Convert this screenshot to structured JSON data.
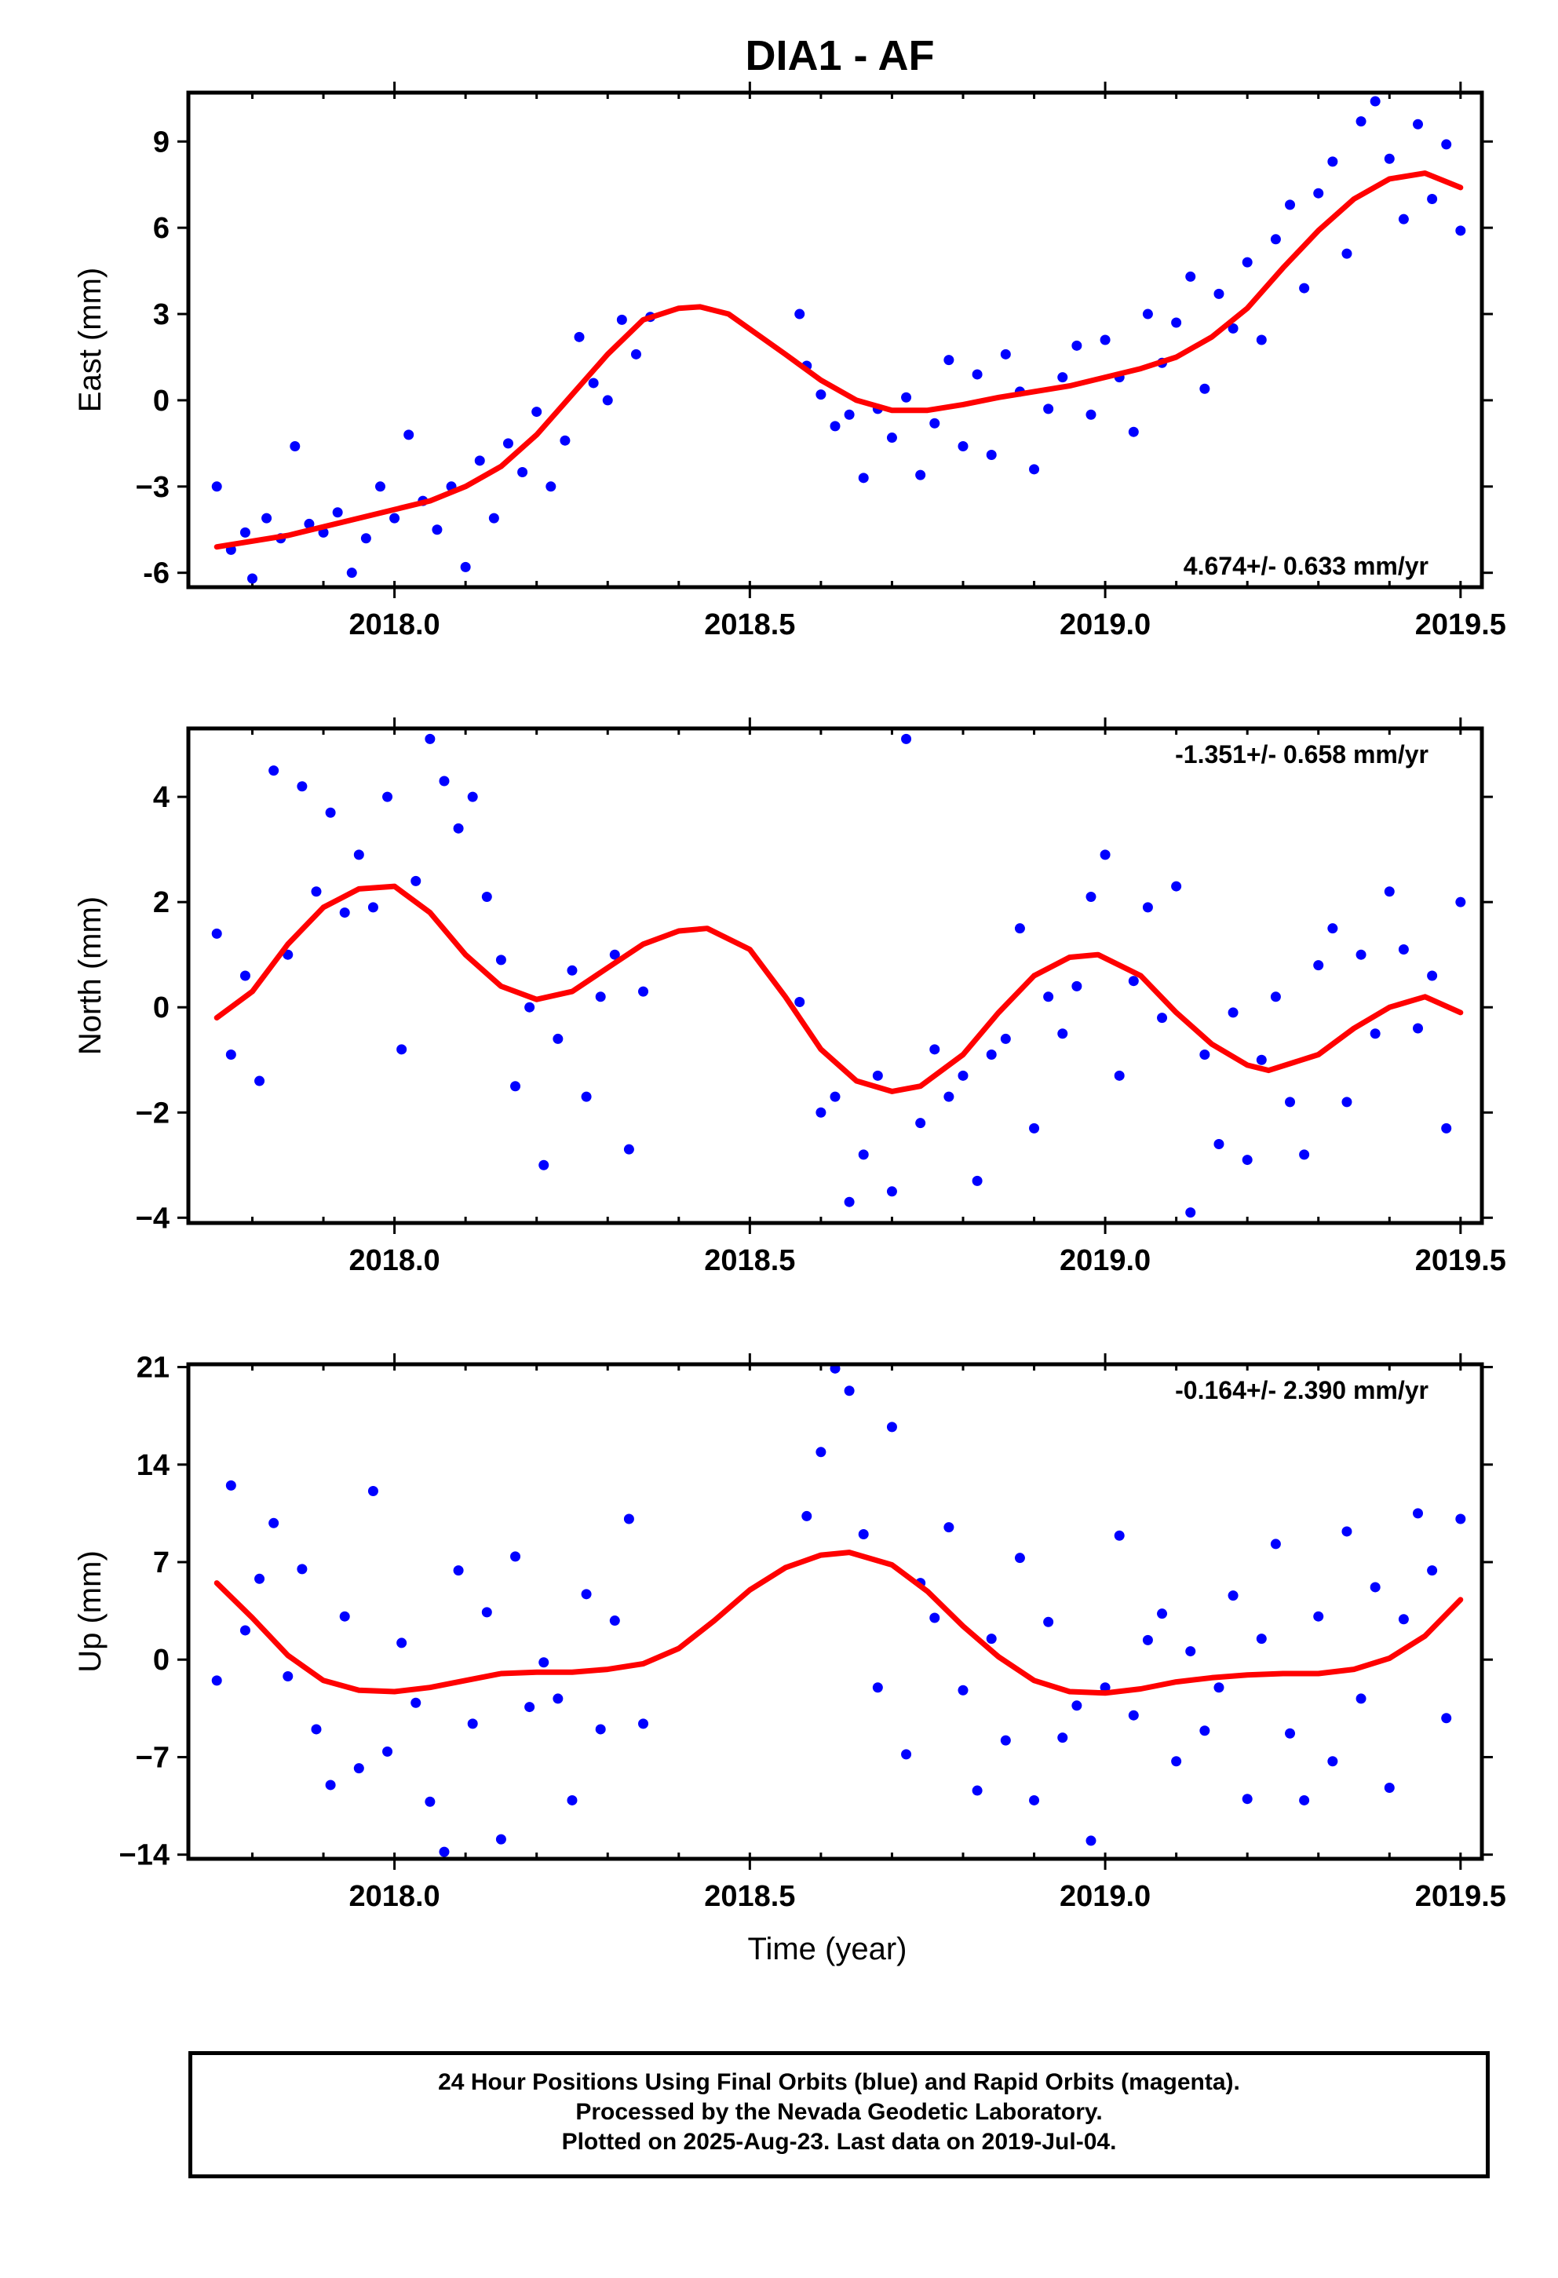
{
  "figure": {
    "title": "DIA1 - AF",
    "x_axis_label": "Time (year)",
    "footer": [
      "24 Hour Positions Using Final Orbits (blue) and Rapid Orbits (magenta).",
      "Processed by the Nevada Geodetic Laboratory.",
      "Plotted on 2025-Aug-23. Last data on 2019-Jul-04."
    ],
    "colors": {
      "points": "#0000ff",
      "model": "#ff0000",
      "frame": "#000000",
      "background": "#ffffff"
    }
  },
  "chart_data": [
    {
      "type": "scatter",
      "ylabel": "East (mm)",
      "xlabel": "",
      "rate_label": "4.674+/- 0.633 mm/yr",
      "rate_position": "bottom-right",
      "xlim": [
        2017.71,
        2019.53
      ],
      "ylim": [
        -6.5,
        10.7
      ],
      "x_ticks": [
        "2018.0",
        "2018.5",
        "2019.0",
        "2019.5"
      ],
      "y_ticks": [
        "9",
        "6",
        "3",
        "0",
        "−3",
        "-6"
      ],
      "series": [
        {
          "role": "points",
          "color": "#0000ff",
          "x": [
            2017.75,
            2017.77,
            2017.79,
            2017.8,
            2017.82,
            2017.84,
            2017.86,
            2017.88,
            2017.9,
            2017.92,
            2017.94,
            2017.96,
            2017.98,
            2018.0,
            2018.02,
            2018.04,
            2018.06,
            2018.08,
            2018.1,
            2018.12,
            2018.14,
            2018.16,
            2018.18,
            2018.2,
            2018.22,
            2018.24,
            2018.26,
            2018.28,
            2018.3,
            2018.32,
            2018.34,
            2018.36,
            2018.57,
            2018.58,
            2018.6,
            2018.62,
            2018.64,
            2018.66,
            2018.68,
            2018.7,
            2018.72,
            2018.74,
            2018.76,
            2018.78,
            2018.8,
            2018.82,
            2018.84,
            2018.86,
            2018.88,
            2018.9,
            2018.92,
            2018.94,
            2018.96,
            2018.98,
            2019.0,
            2019.02,
            2019.04,
            2019.06,
            2019.08,
            2019.1,
            2019.12,
            2019.14,
            2019.16,
            2019.18,
            2019.2,
            2019.22,
            2019.24,
            2019.26,
            2019.28,
            2019.3,
            2019.32,
            2019.34,
            2019.36,
            2019.38,
            2019.4,
            2019.42,
            2019.44,
            2019.46,
            2019.48,
            2019.5
          ],
          "y": [
            -3.0,
            -5.2,
            -4.6,
            -6.2,
            -4.1,
            -4.8,
            -1.6,
            -4.3,
            -4.6,
            -3.9,
            -6.0,
            -4.8,
            -3.0,
            -4.1,
            -1.2,
            -3.5,
            -4.5,
            -3.0,
            -5.8,
            -2.1,
            -4.1,
            -1.5,
            -2.5,
            -0.4,
            -3.0,
            -1.4,
            2.2,
            0.6,
            0.0,
            2.8,
            1.6,
            2.9,
            3.0,
            1.2,
            0.2,
            -0.9,
            -0.5,
            -2.7,
            -0.3,
            -1.3,
            0.1,
            -2.6,
            -0.8,
            1.4,
            -1.6,
            0.9,
            -1.9,
            1.6,
            0.3,
            -2.4,
            -0.3,
            0.8,
            1.9,
            -0.5,
            2.1,
            0.8,
            -1.1,
            3.0,
            1.3,
            2.7,
            4.3,
            0.4,
            3.7,
            2.5,
            4.8,
            2.1,
            5.6,
            6.8,
            3.9,
            7.2,
            8.3,
            5.1,
            9.7,
            10.4,
            8.4,
            6.3,
            9.6,
            7.0,
            8.9,
            5.9
          ]
        },
        {
          "role": "model",
          "color": "#ff0000",
          "x": [
            2017.75,
            2017.85,
            2017.95,
            2018.05,
            2018.1,
            2018.15,
            2018.2,
            2018.25,
            2018.3,
            2018.35,
            2018.4,
            2018.43,
            2018.47,
            2018.55,
            2018.6,
            2018.65,
            2018.7,
            2018.75,
            2018.8,
            2018.85,
            2018.9,
            2018.95,
            2019.0,
            2019.05,
            2019.1,
            2019.15,
            2019.2,
            2019.25,
            2019.3,
            2019.35,
            2019.4,
            2019.45,
            2019.5
          ],
          "y": [
            -5.1,
            -4.7,
            -4.1,
            -3.5,
            -3.0,
            -2.3,
            -1.2,
            0.2,
            1.6,
            2.8,
            3.2,
            3.25,
            3.0,
            1.6,
            0.7,
            0.0,
            -0.35,
            -0.35,
            -0.15,
            0.1,
            0.3,
            0.5,
            0.8,
            1.1,
            1.5,
            2.2,
            3.2,
            4.6,
            5.9,
            7.0,
            7.7,
            7.9,
            7.4
          ]
        }
      ]
    },
    {
      "type": "scatter",
      "ylabel": "North (mm)",
      "xlabel": "",
      "rate_label": "-1.351+/- 0.658 mm/yr",
      "rate_position": "top-right",
      "xlim": [
        2017.71,
        2019.53
      ],
      "ylim": [
        -4.1,
        5.3
      ],
      "x_ticks": [
        "2018.0",
        "2018.5",
        "2019.0",
        "2019.5"
      ],
      "y_ticks": [
        "4",
        "2",
        "0",
        "−2",
        "−4"
      ],
      "series": [
        {
          "role": "points",
          "color": "#0000ff",
          "x": [
            2017.75,
            2017.77,
            2017.79,
            2017.81,
            2017.83,
            2017.85,
            2017.87,
            2017.89,
            2017.91,
            2017.93,
            2017.95,
            2017.97,
            2017.99,
            2018.01,
            2018.03,
            2018.05,
            2018.07,
            2018.09,
            2018.11,
            2018.13,
            2018.15,
            2018.17,
            2018.19,
            2018.21,
            2018.23,
            2018.25,
            2018.27,
            2018.29,
            2018.31,
            2018.33,
            2018.35,
            2018.57,
            2018.6,
            2018.62,
            2018.64,
            2018.66,
            2018.68,
            2018.7,
            2018.72,
            2018.74,
            2018.76,
            2018.78,
            2018.8,
            2018.82,
            2018.84,
            2018.86,
            2018.88,
            2018.9,
            2018.92,
            2018.94,
            2018.96,
            2018.98,
            2019.0,
            2019.02,
            2019.04,
            2019.06,
            2019.08,
            2019.1,
            2019.12,
            2019.14,
            2019.16,
            2019.18,
            2019.2,
            2019.22,
            2019.24,
            2019.26,
            2019.28,
            2019.3,
            2019.32,
            2019.34,
            2019.36,
            2019.38,
            2019.4,
            2019.42,
            2019.44,
            2019.46,
            2019.48,
            2019.5
          ],
          "y": [
            1.4,
            -0.9,
            0.6,
            -1.4,
            4.5,
            1.0,
            4.2,
            2.2,
            3.7,
            1.8,
            2.9,
            1.9,
            4.0,
            -0.8,
            2.4,
            5.1,
            4.3,
            3.4,
            4.0,
            2.1,
            0.9,
            -1.5,
            0.0,
            -3.0,
            -0.6,
            0.7,
            -1.7,
            0.2,
            1.0,
            -2.7,
            0.3,
            0.1,
            -2.0,
            -1.7,
            -3.7,
            -2.8,
            -1.3,
            -3.5,
            5.1,
            -2.2,
            -0.8,
            -1.7,
            -1.3,
            -3.3,
            -0.9,
            -0.6,
            1.5,
            -2.3,
            0.2,
            -0.5,
            0.4,
            2.1,
            2.9,
            -1.3,
            0.5,
            1.9,
            -0.2,
            2.3,
            -3.9,
            -0.9,
            -2.6,
            -0.1,
            -2.9,
            -1.0,
            0.2,
            -1.8,
            -2.8,
            0.8,
            1.5,
            -1.8,
            1.0,
            -0.5,
            2.2,
            1.1,
            -0.4,
            0.6,
            -2.3,
            2.0
          ]
        },
        {
          "role": "model",
          "color": "#ff0000",
          "x": [
            2017.75,
            2017.8,
            2017.85,
            2017.9,
            2017.95,
            2018.0,
            2018.05,
            2018.1,
            2018.15,
            2018.2,
            2018.25,
            2018.3,
            2018.35,
            2018.4,
            2018.44,
            2018.5,
            2018.55,
            2018.6,
            2018.65,
            2018.7,
            2018.74,
            2018.8,
            2018.85,
            2018.9,
            2018.95,
            2018.99,
            2019.05,
            2019.1,
            2019.15,
            2019.2,
            2019.23,
            2019.3,
            2019.35,
            2019.4,
            2019.45,
            2019.5
          ],
          "y": [
            -0.2,
            0.3,
            1.2,
            1.9,
            2.25,
            2.3,
            1.8,
            1.0,
            0.4,
            0.15,
            0.3,
            0.75,
            1.2,
            1.45,
            1.5,
            1.1,
            0.2,
            -0.8,
            -1.4,
            -1.6,
            -1.5,
            -0.9,
            -0.1,
            0.6,
            0.95,
            1.0,
            0.6,
            -0.1,
            -0.7,
            -1.1,
            -1.2,
            -0.9,
            -0.4,
            0.0,
            0.2,
            -0.1
          ]
        }
      ]
    },
    {
      "type": "scatter",
      "ylabel": "Up (mm)",
      "xlabel": "Time (year)",
      "rate_label": "-0.164+/- 2.390 mm/yr",
      "rate_position": "top-right",
      "xlim": [
        2017.71,
        2019.53
      ],
      "ylim": [
        -14.3,
        21.2
      ],
      "x_ticks": [
        "2018.0",
        "2018.5",
        "2019.0",
        "2019.5"
      ],
      "y_ticks": [
        "21",
        "14",
        "7",
        "0",
        "−7",
        "−14"
      ],
      "series": [
        {
          "role": "points",
          "color": "#0000ff",
          "x": [
            2017.75,
            2017.77,
            2017.79,
            2017.81,
            2017.83,
            2017.85,
            2017.87,
            2017.89,
            2017.91,
            2017.93,
            2017.95,
            2017.97,
            2017.99,
            2018.01,
            2018.03,
            2018.05,
            2018.07,
            2018.09,
            2018.11,
            2018.13,
            2018.15,
            2018.17,
            2018.19,
            2018.21,
            2018.23,
            2018.25,
            2018.27,
            2018.29,
            2018.31,
            2018.33,
            2018.35,
            2018.58,
            2018.6,
            2018.62,
            2018.64,
            2018.66,
            2018.68,
            2018.7,
            2018.72,
            2018.74,
            2018.76,
            2018.78,
            2018.8,
            2018.82,
            2018.84,
            2018.86,
            2018.88,
            2018.9,
            2018.92,
            2018.94,
            2018.96,
            2018.98,
            2019.0,
            2019.02,
            2019.04,
            2019.06,
            2019.08,
            2019.1,
            2019.12,
            2019.14,
            2019.16,
            2019.18,
            2019.2,
            2019.22,
            2019.24,
            2019.26,
            2019.28,
            2019.3,
            2019.32,
            2019.34,
            2019.36,
            2019.38,
            2019.4,
            2019.42,
            2019.44,
            2019.46,
            2019.48,
            2019.5
          ],
          "y": [
            -1.5,
            12.5,
            2.1,
            5.8,
            9.8,
            -1.2,
            6.5,
            -5.0,
            -9.0,
            3.1,
            -7.8,
            12.1,
            -6.6,
            1.2,
            -3.1,
            -10.2,
            -13.8,
            6.4,
            -4.6,
            3.4,
            -12.9,
            7.4,
            -3.4,
            -0.2,
            -2.8,
            -10.1,
            4.7,
            -5.0,
            2.8,
            10.1,
            -4.6,
            10.3,
            14.9,
            20.9,
            19.3,
            9.0,
            -2.0,
            16.7,
            -6.8,
            5.5,
            3.0,
            9.5,
            -2.2,
            -9.4,
            1.5,
            -5.8,
            7.3,
            -10.1,
            2.7,
            -5.6,
            -3.3,
            -13.0,
            -2.0,
            8.9,
            -4.0,
            1.4,
            3.3,
            -7.3,
            0.6,
            -5.1,
            -2.0,
            4.6,
            -10.0,
            1.5,
            8.3,
            -5.3,
            -10.1,
            3.1,
            -7.3,
            9.2,
            -2.8,
            5.2,
            -9.2,
            2.9,
            10.5,
            6.4,
            -4.2,
            10.1
          ]
        },
        {
          "role": "model",
          "color": "#ff0000",
          "x": [
            2017.75,
            2017.8,
            2017.85,
            2017.9,
            2017.95,
            2018.0,
            2018.05,
            2018.1,
            2018.15,
            2018.2,
            2018.25,
            2018.3,
            2018.35,
            2018.4,
            2018.45,
            2018.5,
            2018.55,
            2018.6,
            2018.64,
            2018.7,
            2018.75,
            2018.8,
            2018.85,
            2018.9,
            2018.95,
            2019.0,
            2019.05,
            2019.1,
            2019.15,
            2019.2,
            2019.25,
            2019.3,
            2019.35,
            2019.4,
            2019.45,
            2019.5
          ],
          "y": [
            5.5,
            3.0,
            0.3,
            -1.5,
            -2.2,
            -2.3,
            -2.0,
            -1.5,
            -1.0,
            -0.9,
            -0.9,
            -0.7,
            -0.3,
            0.8,
            2.8,
            5.0,
            6.6,
            7.5,
            7.7,
            6.8,
            4.9,
            2.4,
            0.2,
            -1.5,
            -2.3,
            -2.4,
            -2.1,
            -1.6,
            -1.3,
            -1.1,
            -1.0,
            -1.0,
            -0.7,
            0.1,
            1.7,
            4.3
          ]
        }
      ]
    }
  ]
}
